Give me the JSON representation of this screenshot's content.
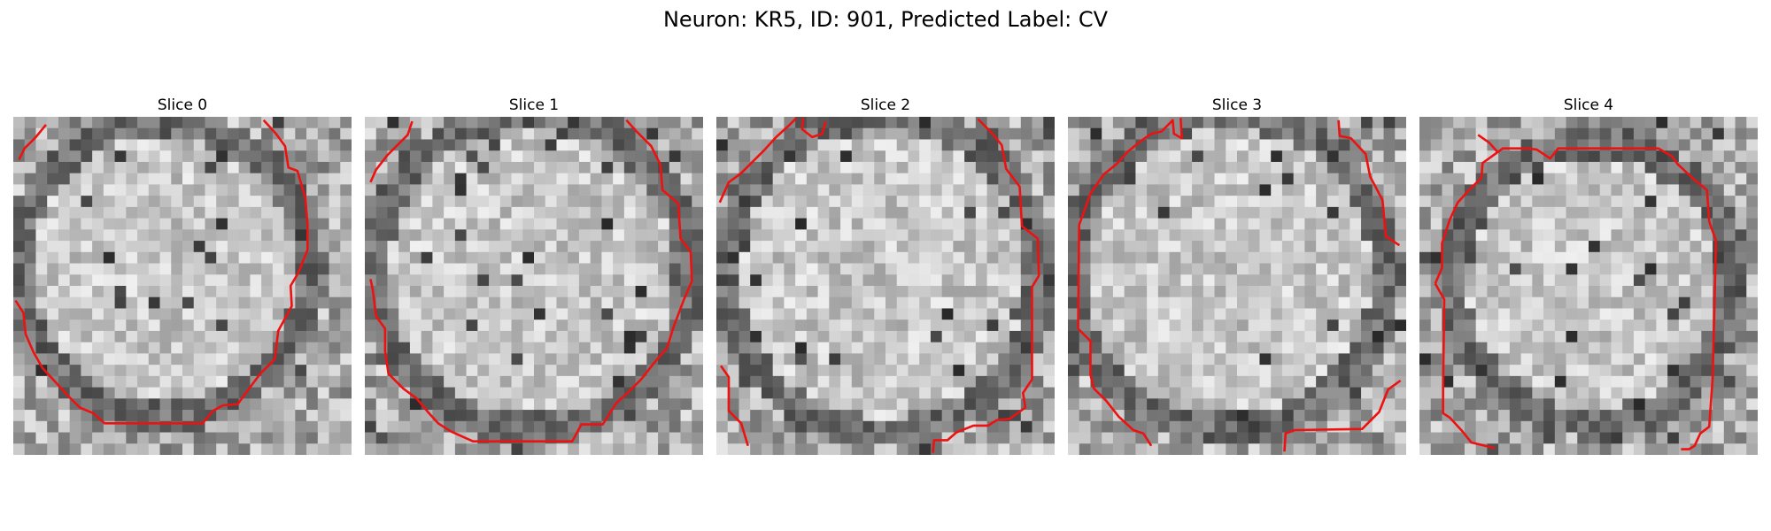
{
  "figure": {
    "title": "Neuron: KR5, ID: 901, Predicted Label: CV"
  },
  "panels": [
    {
      "title": "Slice 0"
    },
    {
      "title": "Slice 1"
    },
    {
      "title": "Slice 2"
    },
    {
      "title": "Slice 3"
    },
    {
      "title": "Slice 4"
    }
  ],
  "colors": {
    "contour": "#ee1111",
    "image_colormap": "grayscale"
  }
}
